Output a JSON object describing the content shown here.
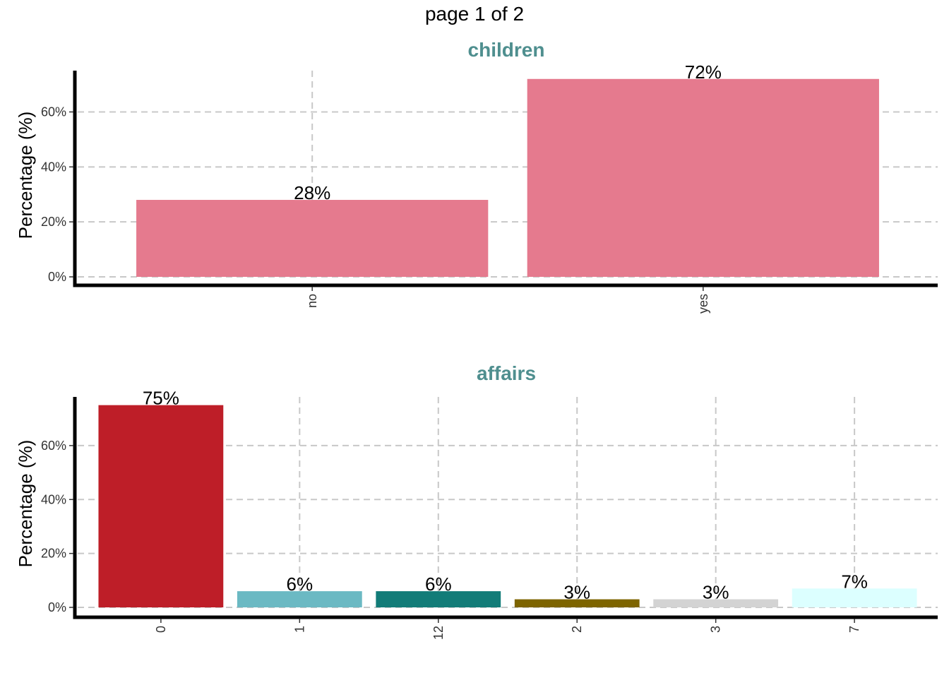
{
  "page": {
    "title": "page 1 of 2"
  },
  "chart_data": [
    {
      "type": "bar",
      "title": "children",
      "ylabel": "Percentage (%)",
      "xlabel": "",
      "categories": [
        "no",
        "yes"
      ],
      "values": [
        28,
        72
      ],
      "data_labels": [
        "28%",
        "72%"
      ],
      "colors": [
        "#e57a8e",
        "#e57a8e"
      ],
      "ylim": [
        0,
        74
      ],
      "yticks": [
        0,
        20,
        40,
        60
      ],
      "ytick_labels": [
        "0%",
        "20%",
        "40%",
        "60%"
      ],
      "grid": true,
      "legend": "none"
    },
    {
      "type": "bar",
      "title": "affairs",
      "ylabel": "Percentage (%)",
      "xlabel": "",
      "categories": [
        "0",
        "1",
        "12",
        "2",
        "3",
        "7"
      ],
      "values": [
        75,
        6,
        6,
        3,
        3,
        7
      ],
      "data_labels": [
        "75%",
        "6%",
        "6%",
        "3%",
        "3%",
        "7%"
      ],
      "colors": [
        "#be1e28",
        "#6bb9c3",
        "#127c78",
        "#7d6400",
        "#d3d3d3",
        "#dcffff"
      ],
      "ylim": [
        0,
        77
      ],
      "yticks": [
        0,
        20,
        40,
        60
      ],
      "ytick_labels": [
        "0%",
        "20%",
        "40%",
        "60%"
      ],
      "grid": true,
      "legend": "none"
    }
  ]
}
